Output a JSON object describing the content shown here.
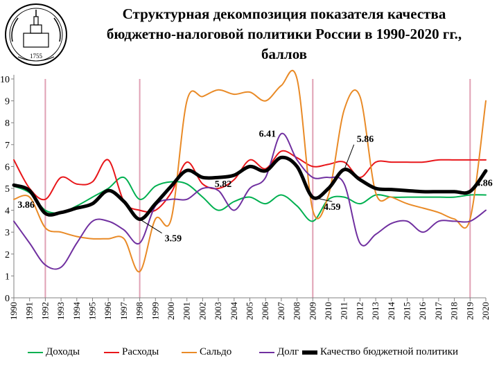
{
  "title_lines": [
    "Структурная декомпозиция показателя качества",
    "бюджетно-налоговой политики России в 1990-2020 гг.,",
    "баллов"
  ],
  "logo": {
    "text": "1755",
    "icon": "university-emblem-icon"
  },
  "chart_data": {
    "type": "line",
    "title": "Структурная декомпозиция показателя качества бюджетно-налоговой политики России в 1990-2020 гг., баллов",
    "x": [
      1990,
      1991,
      1992,
      1993,
      1994,
      1995,
      1996,
      1997,
      1998,
      1999,
      2000,
      2001,
      2002,
      2003,
      2004,
      2005,
      2006,
      2007,
      2008,
      2009,
      2010,
      2011,
      2012,
      2013,
      2014,
      2015,
      2016,
      2017,
      2018,
      2019,
      2020
    ],
    "x_tick_labels": [
      "1990",
      "1991",
      "1992",
      "1993",
      "1994",
      "1995",
      "1996",
      "1997",
      "1998",
      "1999",
      "2000",
      "2001",
      "2002",
      "2003",
      "2004",
      "2005",
      "2006",
      "2007",
      "2008",
      "2009",
      "2010",
      "2011",
      "2012",
      "2013",
      "2014",
      "2015",
      "2016",
      "2017",
      "2018",
      "2019",
      "2020"
    ],
    "ylim": [
      0,
      10
    ],
    "y_ticks": [
      0,
      1,
      2,
      3,
      4,
      5,
      6,
      7,
      8,
      9,
      10
    ],
    "grid": false,
    "vertical_reference_years": [
      1992,
      1998,
      2009,
      2019
    ],
    "legend_position": "bottom",
    "series": [
      {
        "name": "Доходы",
        "color": "#00b050",
        "width": 2,
        "values": [
          5.1,
          4.8,
          4.0,
          3.9,
          4.2,
          4.6,
          5.0,
          5.5,
          4.5,
          5.1,
          5.3,
          5.2,
          4.6,
          4.0,
          4.4,
          4.6,
          4.3,
          4.7,
          4.2,
          3.5,
          4.5,
          4.6,
          4.3,
          4.7,
          4.6,
          4.6,
          4.6,
          4.6,
          4.6,
          4.7,
          4.7
        ]
      },
      {
        "name": "Расходы",
        "color": "#e8161a",
        "width": 2,
        "values": [
          6.3,
          5.0,
          4.5,
          5.5,
          5.2,
          5.3,
          6.3,
          4.4,
          4.0,
          4.0,
          4.8,
          6.2,
          5.2,
          5.0,
          5.4,
          6.3,
          5.9,
          6.7,
          6.4,
          6.0,
          6.1,
          6.2,
          5.5,
          6.2,
          6.2,
          6.2,
          6.2,
          6.3,
          6.3,
          6.3,
          6.3
        ]
      },
      {
        "name": "Сальдо",
        "color": "#e98a26",
        "width": 2,
        "values": [
          4.5,
          4.6,
          3.2,
          3.0,
          2.8,
          2.7,
          2.7,
          2.7,
          1.2,
          3.6,
          3.6,
          9.0,
          9.2,
          9.5,
          9.3,
          9.4,
          9.0,
          9.7,
          10.0,
          4.0,
          4.7,
          8.6,
          9.2,
          4.8,
          4.6,
          4.3,
          4.1,
          3.9,
          3.6,
          3.6,
          9.0
        ]
      },
      {
        "name": "Долг",
        "color": "#7030a0",
        "width": 2,
        "values": [
          3.5,
          2.5,
          1.5,
          1.4,
          2.5,
          3.5,
          3.5,
          3.1,
          2.5,
          4.2,
          4.5,
          4.5,
          5.0,
          4.9,
          4.0,
          5.0,
          5.5,
          7.5,
          6.3,
          5.5,
          5.5,
          5.2,
          2.5,
          2.9,
          3.4,
          3.5,
          3.0,
          3.5,
          3.5,
          3.5,
          4.0
        ]
      },
      {
        "name": "Качество бюджетной политики",
        "color": "#000000",
        "width": 5,
        "values": [
          5.15,
          4.9,
          3.86,
          3.9,
          4.1,
          4.3,
          4.9,
          4.4,
          3.59,
          4.3,
          5.1,
          5.82,
          5.5,
          5.5,
          5.6,
          6.0,
          5.8,
          6.41,
          6.0,
          4.59,
          5.0,
          5.86,
          5.4,
          5.0,
          4.95,
          4.9,
          4.85,
          4.85,
          4.85,
          4.86,
          5.8
        ]
      }
    ],
    "annotations": [
      {
        "text": "3.86",
        "x": 1992,
        "y": 3.86
      },
      {
        "text": "3.59",
        "x": 1998,
        "y": 3.59
      },
      {
        "text": "5.82",
        "x": 2001,
        "y": 5.82
      },
      {
        "text": "6.41",
        "x": 2007,
        "y": 6.41
      },
      {
        "text": "4.59",
        "x": 2009,
        "y": 4.59
      },
      {
        "text": "5.86",
        "x": 2011,
        "y": 5.86
      },
      {
        "text": "4.86",
        "x": 2019,
        "y": 4.86
      }
    ]
  }
}
